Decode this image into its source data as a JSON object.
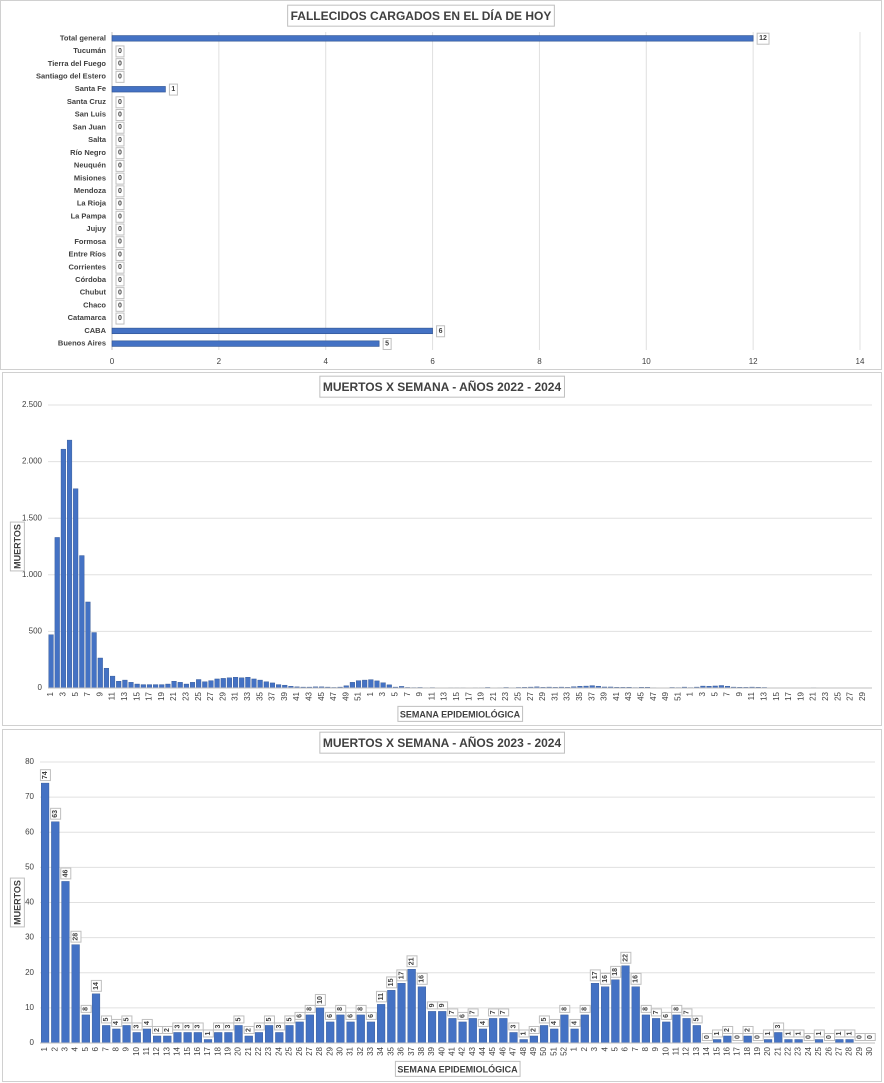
{
  "chart_data": [
    {
      "type": "barh",
      "title": "FALLECIDOS CARGADOS EN EL DÍA DE HOY",
      "categories": [
        "Total general",
        "Tucumán",
        "Tierra del Fuego",
        "Santiago del Estero",
        "Santa Fe",
        "Santa Cruz",
        "San Luis",
        "San Juan",
        "Salta",
        "Río Negro",
        "Neuquén",
        "Misiones",
        "Mendoza",
        "La Rioja",
        "La Pampa",
        "Jujuy",
        "Formosa",
        "Entre Ríos",
        "Corrientes",
        "Córdoba",
        "Chubut",
        "Chaco",
        "Catamarca",
        "CABA",
        "Buenos Aires"
      ],
      "values": [
        12,
        0,
        0,
        0,
        1,
        0,
        0,
        0,
        0,
        0,
        0,
        0,
        0,
        0,
        0,
        0,
        0,
        0,
        0,
        0,
        0,
        0,
        0,
        6,
        5
      ],
      "color": "#4472c4",
      "xlim": [
        0,
        14
      ],
      "xticks": [
        0,
        2,
        4,
        6,
        8,
        10,
        12,
        14
      ],
      "grid": true,
      "data_labels": true
    },
    {
      "type": "bar",
      "title": "MUERTOS X SEMANA - AÑOS 2022 - 2024",
      "y_label": "MUERTOS",
      "x_label": "SEMANA EPIDEMIOLÓGICA",
      "categories": [
        "1",
        null,
        "3",
        null,
        "5",
        null,
        "7",
        null,
        "9",
        null,
        "11",
        null,
        "13",
        null,
        "15",
        null,
        "17",
        null,
        "19",
        null,
        "21",
        null,
        "23",
        null,
        "25",
        null,
        "27",
        null,
        "29",
        null,
        "31",
        null,
        "33",
        null,
        "35",
        null,
        "37",
        null,
        "39",
        null,
        "41",
        null,
        "43",
        null,
        "45",
        null,
        "47",
        null,
        "49",
        null,
        "51",
        null,
        "1",
        null,
        "3",
        null,
        "5",
        null,
        "7",
        null,
        "9",
        null,
        "11",
        null,
        "13",
        null,
        "15",
        null,
        "17",
        null,
        "19",
        null,
        "21",
        null,
        "23",
        null,
        "25",
        null,
        "27",
        null,
        "29",
        null,
        "31",
        null,
        "33",
        null,
        "35",
        null,
        "37",
        null,
        "39",
        null,
        "41",
        null,
        "43",
        null,
        "45",
        null,
        "47",
        null,
        "49",
        null,
        "51",
        null,
        "1",
        null,
        "3",
        null,
        "5",
        null,
        "7",
        null,
        "9",
        null,
        "11",
        null,
        "13",
        null,
        "15",
        null,
        "17",
        null,
        "19",
        null,
        "21",
        null,
        "23",
        null,
        "25",
        null,
        "27",
        null,
        "29",
        null
      ],
      "values": [
        470,
        1330,
        2110,
        2190,
        1760,
        1170,
        760,
        490,
        265,
        175,
        105,
        60,
        70,
        50,
        35,
        30,
        30,
        30,
        30,
        35,
        60,
        50,
        35,
        50,
        75,
        55,
        65,
        80,
        85,
        90,
        95,
        90,
        95,
        80,
        70,
        55,
        45,
        30,
        25,
        15,
        10,
        8,
        8,
        10,
        10,
        8,
        5,
        8,
        20,
        50,
        65,
        70,
        74,
        63,
        46,
        28,
        8,
        14,
        5,
        4,
        5,
        3,
        4,
        2,
        2,
        3,
        3,
        3,
        1,
        3,
        3,
        5,
        2,
        3,
        5,
        3,
        5,
        6,
        8,
        10,
        6,
        8,
        6,
        8,
        6,
        11,
        15,
        17,
        21,
        16,
        9,
        9,
        7,
        6,
        7,
        4,
        7,
        7,
        3,
        1,
        2,
        5,
        4,
        8,
        4,
        8,
        17,
        16,
        18,
        22,
        16,
        8,
        7,
        6,
        8,
        7,
        5,
        0,
        1,
        2,
        0,
        2,
        0,
        1,
        3,
        1,
        1,
        0,
        1,
        0,
        1,
        1,
        0,
        0
      ],
      "color": "#4472c4",
      "ylim": [
        0,
        2500
      ],
      "yticks": [
        0,
        {
          "value": 500,
          "label": "500"
        },
        {
          "value": 1000,
          "label": "1.000"
        },
        {
          "value": 1500,
          "label": "1.500"
        },
        {
          "value": 2000,
          "label": "2.000"
        },
        {
          "value": 2500,
          "label": "2.500"
        }
      ],
      "grid": true,
      "data_labels": false
    },
    {
      "type": "bar",
      "title": "MUERTOS X SEMANA - AÑOS 2023 - 2024",
      "y_label": "MUERTOS",
      "x_label": "SEMANA EPIDEMIOLÓGICA",
      "categories": [
        "1",
        "2",
        "3",
        "4",
        "5",
        "6",
        "7",
        "8",
        "9",
        "10",
        "11",
        "12",
        "13",
        "14",
        "15",
        "16",
        "17",
        "18",
        "19",
        "20",
        "21",
        "22",
        "23",
        "24",
        "25",
        "26",
        "27",
        "28",
        "29",
        "30",
        "31",
        "32",
        "33",
        "34",
        "35",
        "36",
        "37",
        "38",
        "39",
        "40",
        "41",
        "42",
        "43",
        "44",
        "45",
        "46",
        "47",
        "48",
        "49",
        "50",
        "51",
        "52",
        "1",
        "2",
        "3",
        "4",
        "5",
        "6",
        "7",
        "8",
        "9",
        "10",
        "11",
        "12",
        "13",
        "14",
        "15",
        "16",
        "17",
        "18",
        "19",
        "20",
        "21",
        "22",
        "23",
        "24",
        "25",
        "26",
        "27",
        "28",
        "29",
        "30"
      ],
      "values": [
        74,
        63,
        46,
        28,
        8,
        14,
        5,
        4,
        5,
        3,
        4,
        2,
        2,
        3,
        3,
        3,
        1,
        3,
        3,
        5,
        2,
        3,
        5,
        3,
        5,
        6,
        8,
        10,
        6,
        8,
        6,
        8,
        6,
        11,
        15,
        17,
        21,
        16,
        9,
        9,
        7,
        6,
        7,
        4,
        7,
        7,
        3,
        1,
        2,
        5,
        4,
        8,
        4,
        8,
        17,
        16,
        18,
        22,
        16,
        8,
        7,
        6,
        8,
        7,
        5,
        0,
        1,
        2,
        0,
        2,
        0,
        1,
        3,
        1,
        1,
        0,
        1,
        0,
        1,
        1,
        0,
        0
      ],
      "color": "#4472c4",
      "ylim": [
        0,
        80
      ],
      "yticks": [
        0,
        10,
        20,
        30,
        40,
        50,
        60,
        70,
        80
      ],
      "grid": true,
      "data_labels": true
    }
  ]
}
